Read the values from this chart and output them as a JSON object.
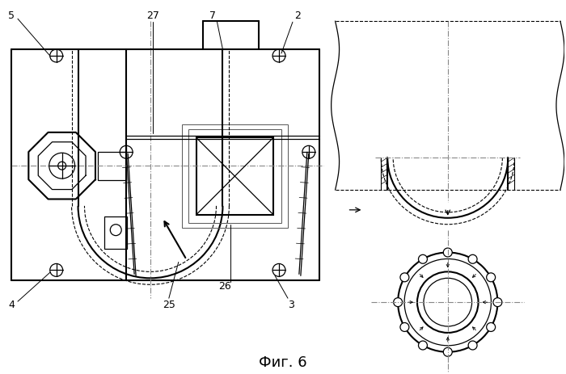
{
  "bg_color": "#ffffff",
  "line_color": "#000000",
  "title": "Фиг. 6",
  "title_fontsize": 13
}
